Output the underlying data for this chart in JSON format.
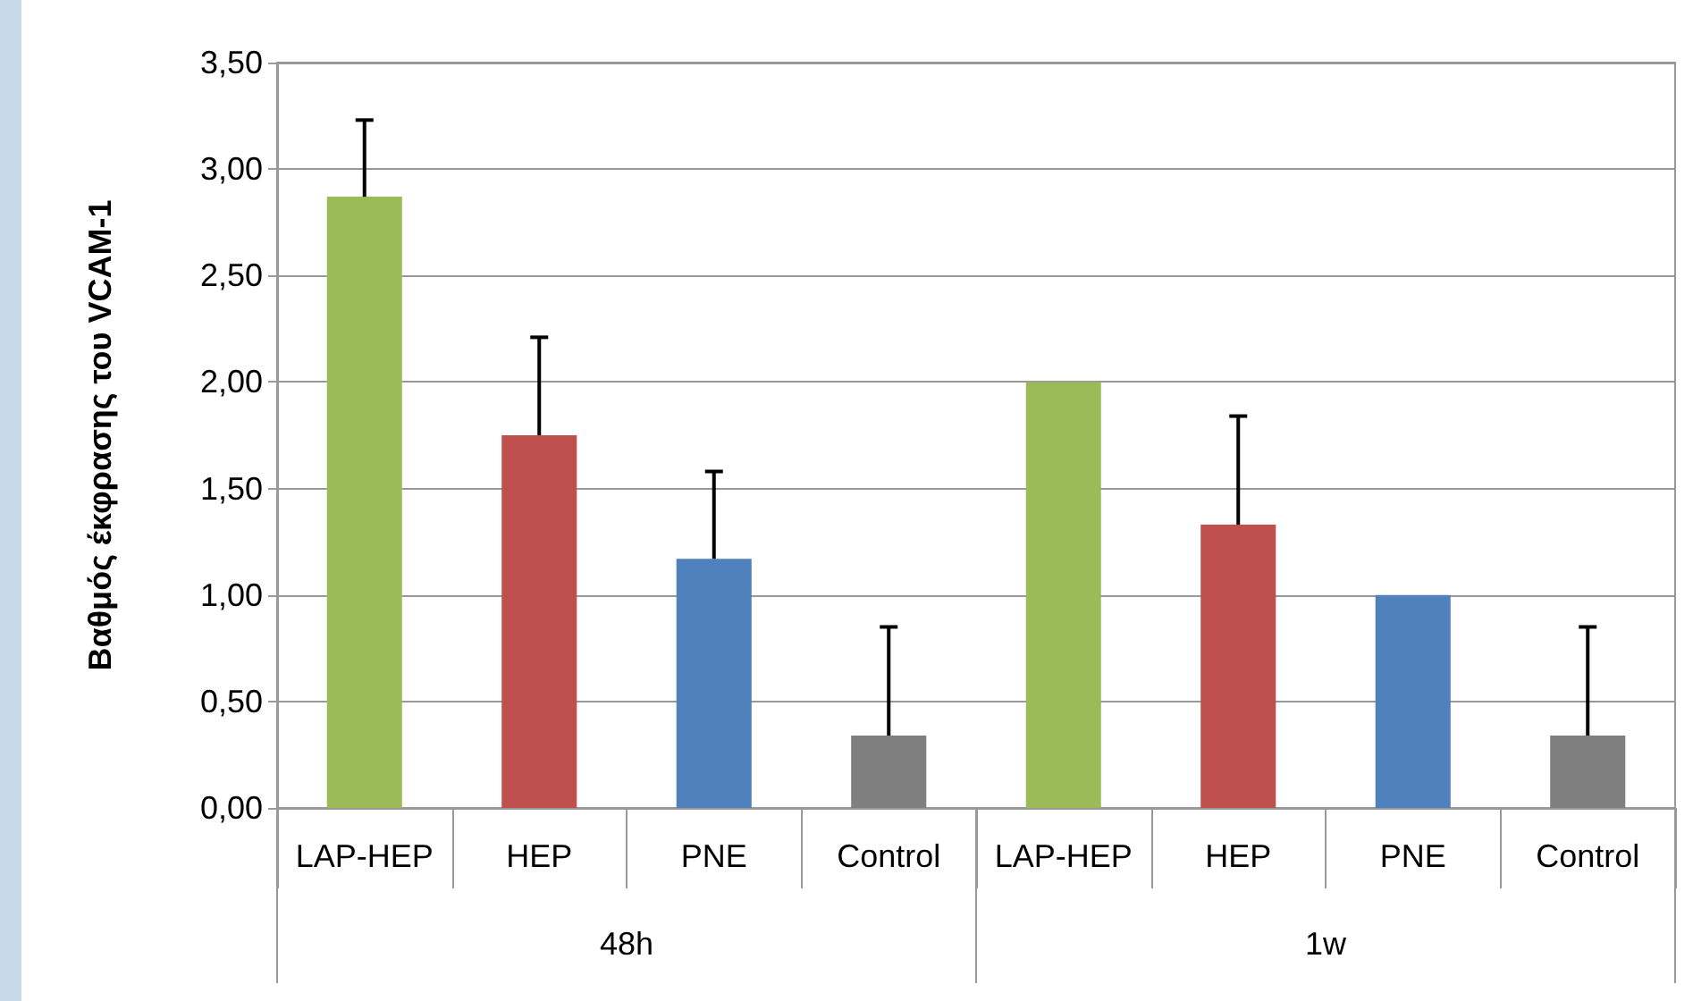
{
  "chart_data": {
    "type": "bar",
    "ylabel": "Βαθμός έκφρασης του VCAM-1",
    "categories": [
      "LAP-HEP",
      "HEP",
      "PNE",
      "Control",
      "LAP-HEP",
      "HEP",
      "PNE",
      "Control"
    ],
    "values": [
      2.87,
      1.75,
      1.17,
      0.34,
      2.0,
      1.33,
      1.0,
      0.34
    ],
    "colors": [
      "#9bbb59",
      "#c0504d",
      "#4f81bd",
      "#7f7f7f",
      "#9bbb59",
      "#c0504d",
      "#4f81bd",
      "#7f7f7f"
    ],
    "errors": [
      [
        2.87,
        3.23
      ],
      [
        1.75,
        2.21
      ],
      [
        1.17,
        1.58
      ],
      [
        0.34,
        0.85
      ],
      null,
      [
        1.33,
        1.84
      ],
      null,
      [
        0.34,
        0.85
      ]
    ],
    "annotations": [
      "48h",
      "1w"
    ],
    "ylim": [
      0,
      3.5
    ],
    "yticks": [
      {
        "value": 0,
        "label": "0,00"
      },
      {
        "value": 0.5,
        "label": "0,50"
      },
      {
        "value": 1,
        "label": "1,00"
      },
      {
        "value": 1.5,
        "label": "1,50"
      },
      {
        "value": 2,
        "label": "2,00"
      },
      {
        "value": 2.5,
        "label": "2,50"
      },
      {
        "value": 3,
        "label": "3,00"
      },
      {
        "value": 3.5,
        "label": "3,50"
      }
    ],
    "grid": "y"
  }
}
